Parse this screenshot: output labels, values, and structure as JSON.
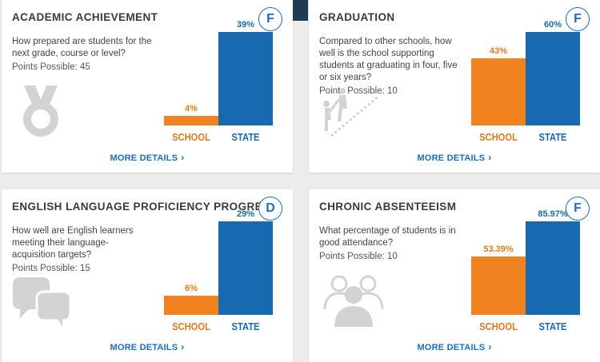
{
  "cards": [
    {
      "title": "ACADEMIC ACHIEVEMENT",
      "grade": "F",
      "question": "How prepared are students for the next grade, course or level?",
      "points": "Points Possible: 45",
      "icon": "medal-icon",
      "school_label": "4%",
      "state_label": "39%",
      "more": "MORE DETAILS"
    },
    {
      "title": "GRADUATION",
      "grade": "F",
      "question": "Compared to other schools, how well is the school supporting students at graduating in four, five or six years?",
      "points": "Points Possible: 10",
      "icon": "graduation-stairs-icon",
      "school_label": "43%",
      "state_label": "60%",
      "more": "MORE DETAILS"
    },
    {
      "title": "ENGLISH LANGUAGE PROFICIENCY PROGRESS",
      "grade": "D",
      "question": "How well are English learners meeting their language-acquisition targets?",
      "points": "Points Possible: 15",
      "icon": "speech-bubbles-icon",
      "school_label": "6%",
      "state_label": "29%",
      "more": "MORE DETAILS"
    },
    {
      "title": "CHRONIC ABSENTEEISM",
      "grade": "F",
      "question": "What percentage of students is in good attendance?",
      "points": "Points Possible: 10",
      "icon": "people-group-icon",
      "school_label": "53.39%",
      "state_label": "85.97%",
      "more": "MORE DETAILS"
    }
  ],
  "categories": {
    "school": "SCHOOL",
    "state": "STATE"
  },
  "chart_data": [
    {
      "type": "bar",
      "categories": [
        "SCHOOL",
        "STATE"
      ],
      "values": [
        4,
        39
      ],
      "ylim": [
        0,
        39
      ]
    },
    {
      "type": "bar",
      "categories": [
        "SCHOOL",
        "STATE"
      ],
      "values": [
        43,
        60
      ],
      "ylim": [
        0,
        60
      ]
    },
    {
      "type": "bar",
      "categories": [
        "SCHOOL",
        "STATE"
      ],
      "values": [
        6,
        29
      ],
      "ylim": [
        0,
        29
      ]
    },
    {
      "type": "bar",
      "categories": [
        "SCHOOL",
        "STATE"
      ],
      "values": [
        53.39,
        85.97
      ],
      "ylim": [
        0,
        85.97
      ]
    }
  ],
  "colors": {
    "school": "#f0821f",
    "state": "#1769b0",
    "accent": "#1a6ebd"
  }
}
